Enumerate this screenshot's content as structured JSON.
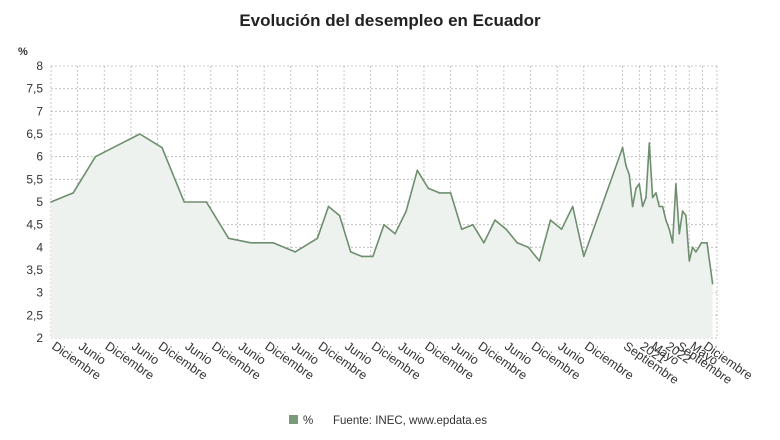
{
  "chart_data": {
    "type": "area",
    "title": "Evolución del desempleo en Ecuador",
    "ylabel": "%",
    "ylim": [
      2,
      8
    ],
    "yticks": [
      "2",
      "2,5",
      "3",
      "3,5",
      "4",
      "4,5",
      "5",
      "5,5",
      "6",
      "6,5",
      "7",
      "7,5",
      "8"
    ],
    "x_tick_labels": [
      "Diciembre",
      "Junio",
      "Diciembre",
      "Junio",
      "Diciembre",
      "Junio",
      "Diciembre",
      "Junio",
      "Diciembre",
      "Junio",
      "Diciembre",
      "Junio",
      "Diciembre",
      "Junio",
      "Diciembre",
      "Junio",
      "Diciembre",
      "Junio",
      "Diciembre",
      "Junio",
      "Diciembre",
      "Septiembre",
      "2021",
      "Mayo",
      "2022",
      "Septiembre",
      "Mayo",
      "Diciembre"
    ],
    "grid": true,
    "legend": "bottom",
    "colors": {
      "line": "#6e8e6e",
      "fill": "#eef2ee",
      "grid": "#b9b9b9",
      "legend_swatch": "#7a9a7a"
    },
    "series": [
      {
        "name": "%",
        "values": [
          [
            0,
            5.0
          ],
          [
            2,
            5.2
          ],
          [
            4,
            6.0
          ],
          [
            8,
            6.5
          ],
          [
            10,
            6.2
          ],
          [
            12,
            5.0
          ],
          [
            14,
            5.0
          ],
          [
            16,
            4.2
          ],
          [
            18,
            4.1
          ],
          [
            20,
            4.1
          ],
          [
            22,
            3.9
          ],
          [
            24,
            4.2
          ],
          [
            25,
            4.9
          ],
          [
            26,
            4.7
          ],
          [
            27,
            3.9
          ],
          [
            28,
            3.8
          ],
          [
            29,
            3.8
          ],
          [
            30,
            4.5
          ],
          [
            31,
            4.3
          ],
          [
            32,
            4.8
          ],
          [
            33,
            5.7
          ],
          [
            34,
            5.3
          ],
          [
            35,
            5.2
          ],
          [
            36,
            5.2
          ],
          [
            37,
            4.4
          ],
          [
            38,
            4.5
          ],
          [
            39,
            4.1
          ],
          [
            40,
            4.6
          ],
          [
            41,
            4.4
          ],
          [
            42,
            4.1
          ],
          [
            43,
            4.0
          ],
          [
            44,
            3.7
          ],
          [
            45,
            4.6
          ],
          [
            46,
            4.4
          ],
          [
            47,
            4.9
          ],
          [
            48,
            3.8
          ],
          [
            51.5,
            6.2
          ],
          [
            51.8,
            5.8
          ],
          [
            52.1,
            5.6
          ],
          [
            52.4,
            4.9
          ],
          [
            52.7,
            5.3
          ],
          [
            53.0,
            5.4
          ],
          [
            53.3,
            4.9
          ],
          [
            53.6,
            5.1
          ],
          [
            53.9,
            6.3
          ],
          [
            54.2,
            5.1
          ],
          [
            54.5,
            5.2
          ],
          [
            54.8,
            4.9
          ],
          [
            55.1,
            4.9
          ],
          [
            55.4,
            4.6
          ],
          [
            55.7,
            4.4
          ],
          [
            56.0,
            4.1
          ],
          [
            56.3,
            5.4
          ],
          [
            56.6,
            4.3
          ],
          [
            56.9,
            4.8
          ],
          [
            57.2,
            4.7
          ],
          [
            57.5,
            3.7
          ],
          [
            57.8,
            4.0
          ],
          [
            58.1,
            3.9
          ],
          [
            58.6,
            4.1
          ],
          [
            59.1,
            4.1
          ],
          [
            59.6,
            3.2
          ]
        ]
      }
    ]
  },
  "legend": {
    "series_label": "%"
  },
  "source": "Fuente: INEC, www.epdata.es"
}
